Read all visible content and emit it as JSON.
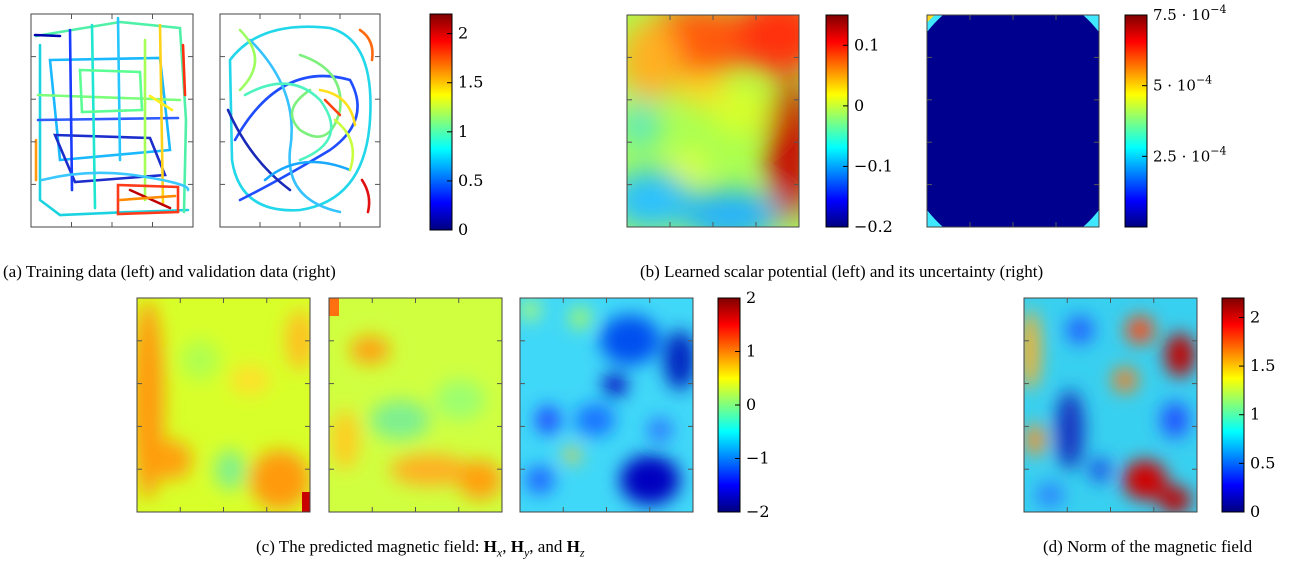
{
  "chart_data": [
    {
      "type": "line",
      "panel": "a",
      "caption_id": "a",
      "plots": [
        {
          "id": "a-train",
          "kind": "trajectory"
        },
        {
          "id": "a-valid",
          "kind": "trajectory"
        }
      ],
      "colorbar": {
        "range": [
          0,
          2.2
        ],
        "ticks": [
          0,
          0.5,
          1,
          1.5,
          2
        ],
        "tick_labels": [
          "0",
          "0.5",
          "1",
          "1.5",
          "2"
        ]
      }
    },
    {
      "type": "heatmap",
      "panel": "b",
      "caption_id": "b",
      "plots": [
        {
          "id": "b-potential",
          "kind": "field",
          "colorbar": {
            "range": [
              -0.2,
              0.15
            ],
            "ticks": [
              0.1,
              0,
              -0.1,
              -0.2
            ],
            "tick_labels": [
              "0.1",
              "0",
              "−0.1",
              "−0.2"
            ]
          }
        },
        {
          "id": "b-uncertainty",
          "kind": "field",
          "colorbar": {
            "range": [
              0.0,
              0.00075
            ],
            "ticks": [
              0.00075,
              0.0005,
              0.00025
            ],
            "tick_labels": [
              "7.5 · 10",
              "5 · 10",
              "2.5 · 10"
            ],
            "tick_exponent": "−4"
          }
        }
      ]
    },
    {
      "type": "heatmap",
      "panel": "c",
      "caption_id": "c",
      "plots": [
        {
          "id": "c-hx",
          "kind": "field"
        },
        {
          "id": "c-hy",
          "kind": "field"
        },
        {
          "id": "c-hz",
          "kind": "field"
        }
      ],
      "colorbar": {
        "range": [
          -2,
          2
        ],
        "ticks": [
          2,
          1,
          0,
          -1,
          -2
        ],
        "tick_labels": [
          "2",
          "1",
          "0",
          "−1",
          "−2"
        ]
      }
    },
    {
      "type": "heatmap",
      "panel": "d",
      "caption_id": "d",
      "plots": [
        {
          "id": "d-norm",
          "kind": "field"
        }
      ],
      "colorbar": {
        "range": [
          0,
          2.2
        ],
        "ticks": [
          2,
          1.5,
          1,
          0.5,
          0
        ],
        "tick_labels": [
          "2",
          "1.5",
          "1",
          "0.5",
          "0"
        ]
      }
    }
  ],
  "captions": {
    "a": "(a) Training data (left) and validation data (right)",
    "b": "(b) Learned scalar potential (left) and its uncertainty (right)",
    "c_prefix": "(c) The predicted magnetic field: ",
    "c_hx": "H",
    "c_hx_sub": "x",
    "c_hy": "H",
    "c_hy_sub": "y",
    "c_and": "and",
    "c_hz": "H",
    "c_hz_sub": "z",
    "d": "(d) Norm of the magnetic field"
  },
  "colormap": "jet"
}
